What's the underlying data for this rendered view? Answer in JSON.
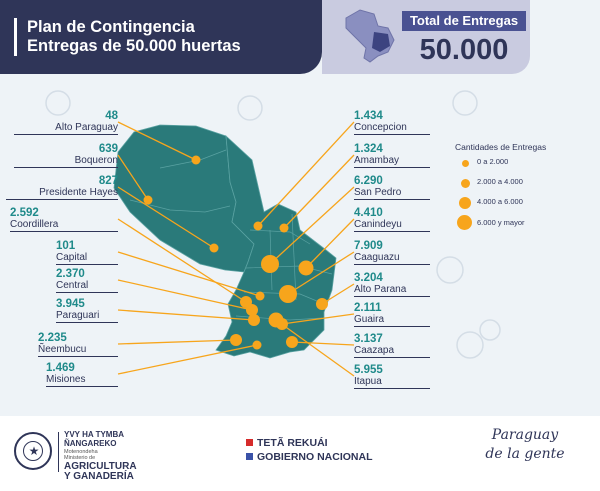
{
  "header": {
    "title_line1": "Plan de Contingencia",
    "title_line2": "Entregas de 50.000 huertas",
    "total_label": "Total de Entregas",
    "total_value": "50.000"
  },
  "legend": {
    "title": "Cantidades de Entregas",
    "items": [
      {
        "label": "0 a 2.000"
      },
      {
        "label": "2.000 a 4.000"
      },
      {
        "label": "4.000 a 6.000"
      },
      {
        "label": "6.000 y mayor"
      }
    ]
  },
  "departments": [
    {
      "name": "Alto Paraguay",
      "value": "48"
    },
    {
      "name": "Boqueron",
      "value": "639"
    },
    {
      "name": "Presidente Hayes",
      "value": "827"
    },
    {
      "name": "Coordillera",
      "value": "2.592"
    },
    {
      "name": "Capital",
      "value": "101"
    },
    {
      "name": "Central",
      "value": "2.370"
    },
    {
      "name": "Paraguari",
      "value": "3.945"
    },
    {
      "name": "Ñeembucu",
      "value": "2.235"
    },
    {
      "name": "Misiones",
      "value": "1.469"
    },
    {
      "name": "Concepcion",
      "value": "1.434"
    },
    {
      "name": "Amambay",
      "value": "1.324"
    },
    {
      "name": "San Pedro",
      "value": "6.290"
    },
    {
      "name": "Canindeyu",
      "value": "4.410"
    },
    {
      "name": "Caaguazu",
      "value": "7.909"
    },
    {
      "name": "Alto Parana",
      "value": "3.204"
    },
    {
      "name": "Guaira",
      "value": "2.111"
    },
    {
      "name": "Caazapa",
      "value": "3.137"
    },
    {
      "name": "Itapua",
      "value": "5.955"
    }
  ],
  "footer": {
    "ministry_line1": "YVY HA TYMBA",
    "ministry_line2": "ÑANGAREKO",
    "ministry_small1": "Motenondeha",
    "ministry_small2": "Ministerio de",
    "ministry_line3": "AGRICULTURA",
    "ministry_line4": "Y GANADERÍA",
    "gov_line1": "TETÃ REKUÁI",
    "gov_line2": "GOBIERNO NACIONAL",
    "brand_line1": "Paraguay",
    "brand_line2": "de la gente"
  },
  "colors": {
    "navy": "#2f3558",
    "teal_map": "#2a7a7a",
    "marker": "#f7a51c",
    "label_number": "#1f8a8a"
  }
}
